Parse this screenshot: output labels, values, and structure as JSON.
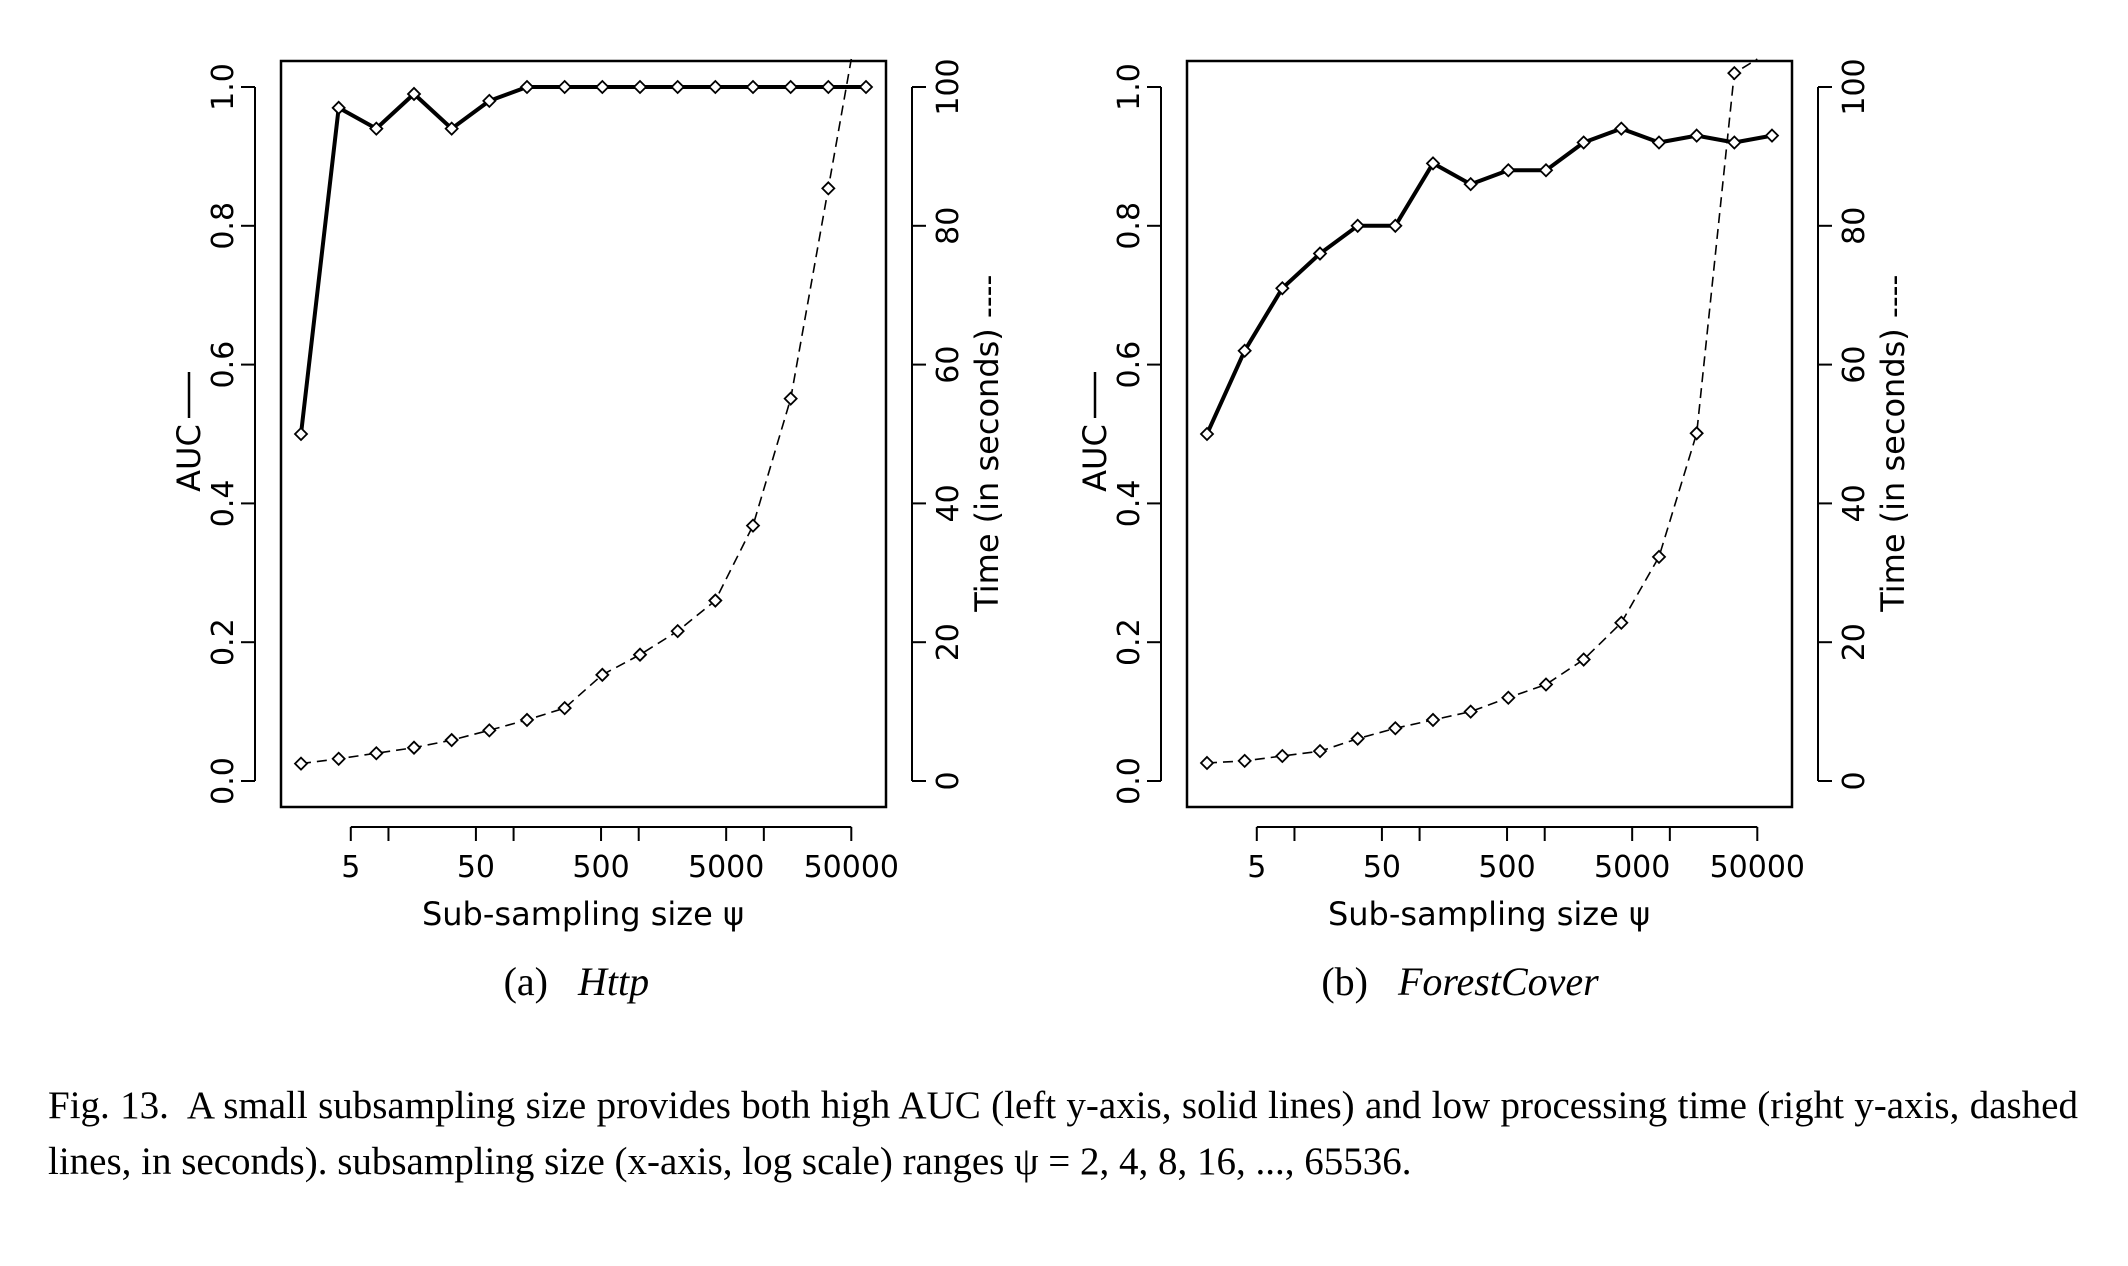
{
  "chart_data": [
    {
      "type": "line",
      "subcaption_label": "(a)",
      "subcaption_name": "Http",
      "xlabel": "Sub-sampling size ψ",
      "ylabel_left": "AUC",
      "ylabel_right": "Time (in seconds)",
      "x_scale": "log",
      "x": [
        2,
        4,
        8,
        16,
        32,
        64,
        128,
        256,
        512,
        1024,
        2048,
        4096,
        8192,
        16384,
        32768,
        65536
      ],
      "x_ticks": [
        5,
        50,
        500,
        5000,
        50000
      ],
      "x_tick_labels": [
        "5",
        "50",
        "500",
        "5000",
        "50000"
      ],
      "x_minor_ticks": [
        10,
        100,
        1000,
        10000
      ],
      "ylim_left": [
        0.0,
        1.0
      ],
      "y_ticks_left": [
        "0.0",
        "0.2",
        "0.4",
        "0.6",
        "0.8",
        "1.0"
      ],
      "ylim_right": [
        0,
        100
      ],
      "y_ticks_right": [
        "0",
        "20",
        "40",
        "60",
        "80",
        "100"
      ],
      "series": [
        {
          "name": "AUC",
          "axis": "left",
          "style": "solid",
          "values": [
            0.5,
            0.97,
            0.94,
            0.99,
            0.94,
            0.98,
            1.0,
            1.0,
            1.0,
            1.0,
            1.0,
            1.0,
            1.0,
            1.0,
            1.0,
            1.0
          ]
        },
        {
          "name": "Time (in seconds)",
          "axis": "right",
          "style": "dashed",
          "values": [
            2.5,
            3.2,
            4.0,
            4.8,
            5.9,
            7.3,
            8.8,
            10.5,
            15.3,
            18.2,
            21.6,
            26.0,
            36.8,
            55.1,
            85.4,
            null
          ],
          "continues_above_to_x": 50000
        }
      ]
    },
    {
      "type": "line",
      "subcaption_label": "(b)",
      "subcaption_name": "ForestCover",
      "xlabel": "Sub-sampling size ψ",
      "ylabel_left": "AUC",
      "ylabel_right": "Time (in seconds)",
      "x_scale": "log",
      "x": [
        2,
        4,
        8,
        16,
        32,
        64,
        128,
        256,
        512,
        1024,
        2048,
        4096,
        8192,
        16384,
        32768,
        65536
      ],
      "x_ticks": [
        5,
        50,
        500,
        5000,
        50000
      ],
      "x_tick_labels": [
        "5",
        "50",
        "500",
        "5000",
        "50000"
      ],
      "x_minor_ticks": [
        10,
        100,
        1000,
        10000
      ],
      "ylim_left": [
        0.0,
        1.0
      ],
      "y_ticks_left": [
        "0.0",
        "0.2",
        "0.4",
        "0.6",
        "0.8",
        "1.0"
      ],
      "ylim_right": [
        0,
        100
      ],
      "y_ticks_right": [
        "0",
        "20",
        "40",
        "60",
        "80",
        "100"
      ],
      "series": [
        {
          "name": "AUC",
          "axis": "left",
          "style": "solid",
          "values": [
            0.5,
            0.62,
            0.71,
            0.76,
            0.8,
            0.8,
            0.89,
            0.86,
            0.88,
            0.88,
            0.92,
            0.94,
            0.92,
            0.93,
            0.92,
            0.93
          ]
        },
        {
          "name": "Time (in seconds)",
          "axis": "right",
          "style": "dashed",
          "values": [
            2.6,
            2.9,
            3.6,
            4.3,
            6.1,
            7.6,
            8.8,
            10.0,
            12.0,
            13.9,
            17.5,
            22.8,
            32.3,
            50.1,
            102.0,
            null
          ],
          "continues_above_to_x": 50000
        }
      ]
    }
  ],
  "caption": {
    "label": "Fig. 13.",
    "text": "A small subsampling size provides both high AUC (left y-axis, solid lines) and low processing time (right y-axis, dashed lines, in seconds). subsampling size (x-axis, log scale) ranges ψ = 2, 4, 8, 16, ..., 65536."
  }
}
